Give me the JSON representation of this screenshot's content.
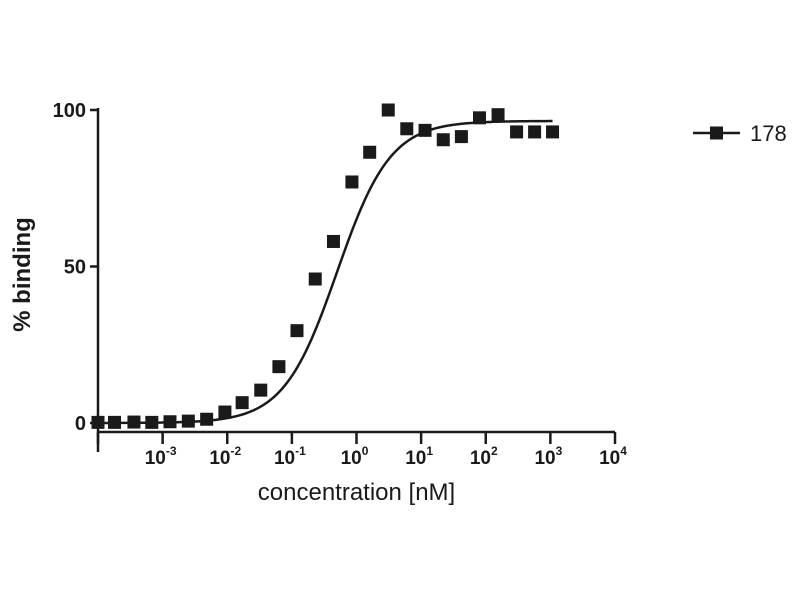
{
  "chart_data": {
    "type": "scatter",
    "xscale": "log",
    "xlabel": "concentration [nM]",
    "ylabel": "% binding",
    "xlim": [
      0.0001,
      10000
    ],
    "ylim": [
      0,
      100
    ],
    "x_ticks": [
      {
        "base": "10",
        "exp": "-3",
        "value": 0.001
      },
      {
        "base": "10",
        "exp": "-2",
        "value": 0.01
      },
      {
        "base": "10",
        "exp": "-1",
        "value": 0.1
      },
      {
        "base": "10",
        "exp": "0",
        "value": 1
      },
      {
        "base": "10",
        "exp": "1",
        "value": 10
      },
      {
        "base": "10",
        "exp": "2",
        "value": 100
      },
      {
        "base": "10",
        "exp": "3",
        "value": 1000
      },
      {
        "base": "10",
        "exp": "4",
        "value": 10000
      }
    ],
    "y_ticks": [
      {
        "label": "0",
        "value": 0
      },
      {
        "label": "50",
        "value": 50
      },
      {
        "label": "100",
        "value": 100
      }
    ],
    "series": [
      {
        "name": "178",
        "marker": "square",
        "color": "#1a1a1a",
        "x": [
          0.0001,
          0.00018,
          0.00036,
          0.00068,
          0.0013,
          0.0025,
          0.0048,
          0.0092,
          0.017,
          0.033,
          0.063,
          0.12,
          0.23,
          0.44,
          0.85,
          1.6,
          3.1,
          6.0,
          11.5,
          22,
          42,
          80,
          155,
          300,
          570,
          1080
        ],
        "y": [
          0.2,
          0.2,
          0.3,
          0.2,
          0.4,
          0.6,
          1.2,
          3.5,
          6.5,
          10.5,
          18,
          29.5,
          46,
          58,
          77,
          86.5,
          100,
          94,
          93.5,
          90.5,
          91.5,
          97.5,
          98.5,
          93,
          93,
          93
        ]
      }
    ],
    "fit": {
      "bottom": 0,
      "top": 96.5,
      "ec50": 0.5,
      "hill": 1.05
    },
    "legend": {
      "position": "top-right",
      "entries": [
        "178"
      ]
    },
    "grid": false
  }
}
